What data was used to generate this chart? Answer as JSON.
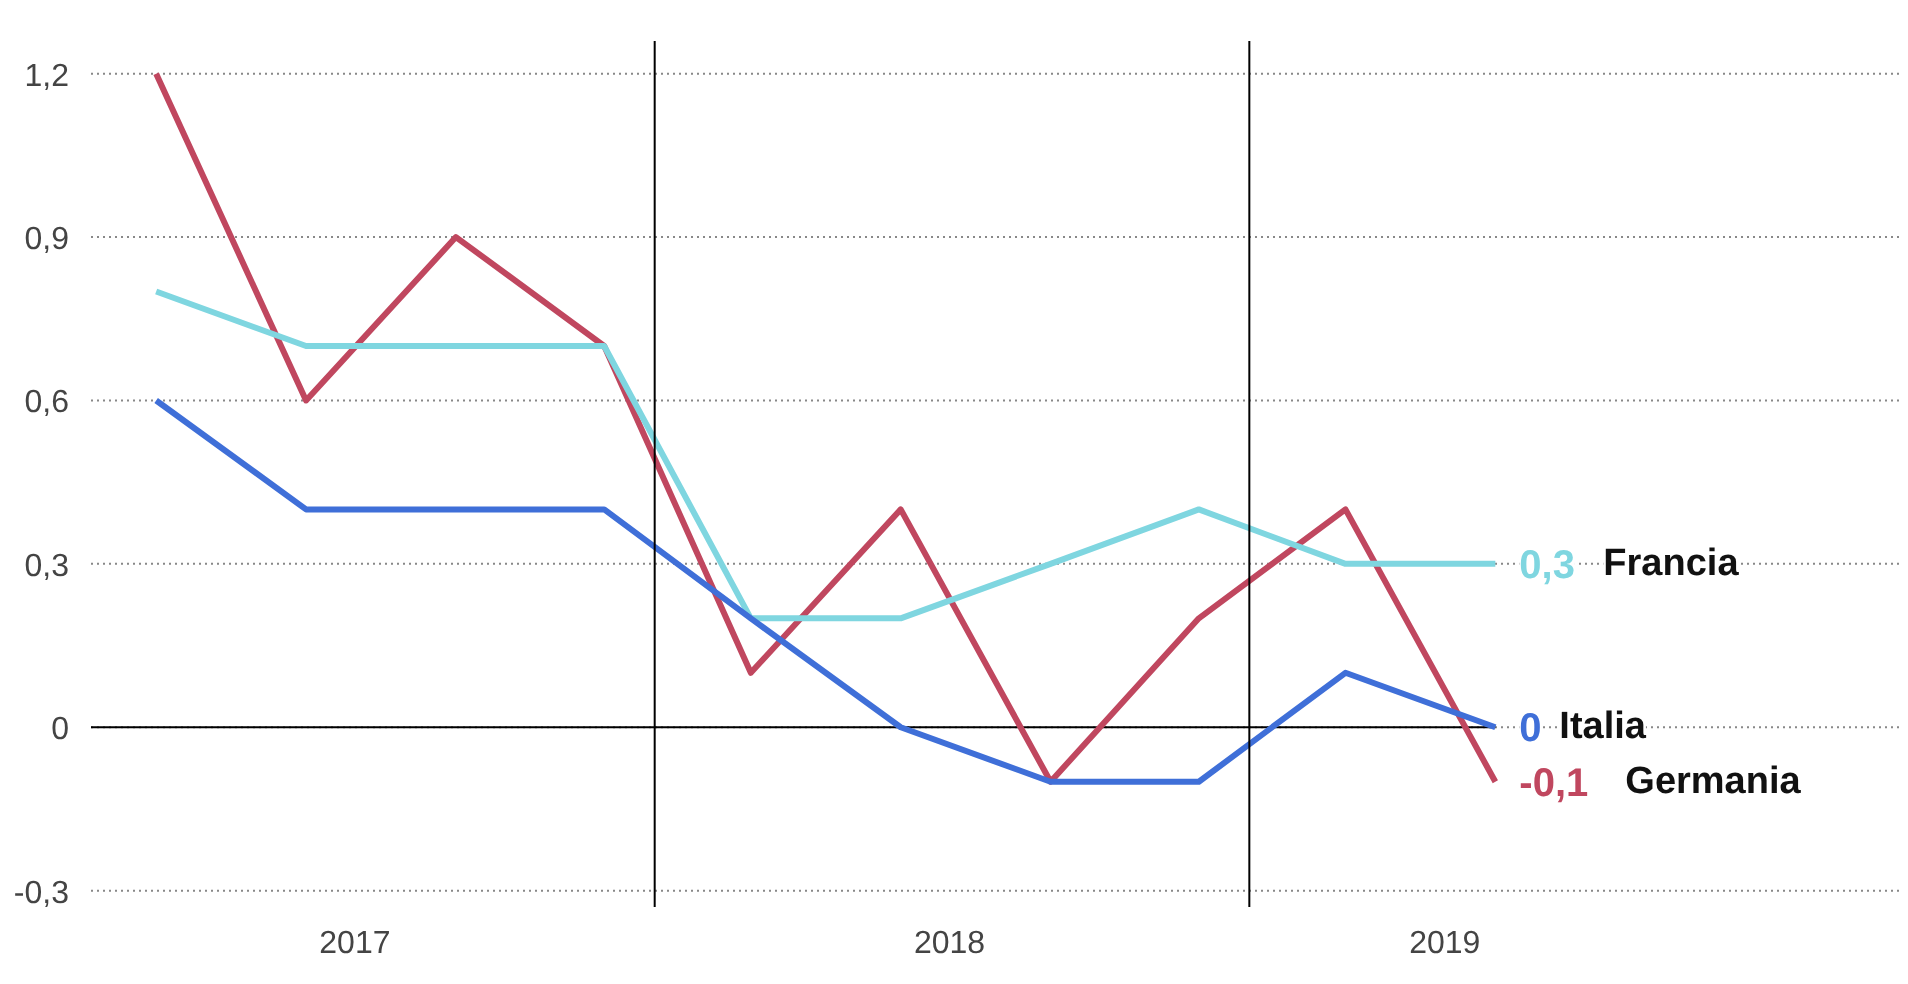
{
  "chart_data": {
    "type": "line",
    "x": [
      "2017-03",
      "2017-06",
      "2017-09",
      "2017-12",
      "2018-03",
      "2018-06",
      "2018-09",
      "2018-12",
      "2019-03",
      "2019-06"
    ],
    "xlim": [
      "2017-01-20",
      "2020-02-05"
    ],
    "xticks": [
      {
        "value": "2017-07",
        "label": "2017"
      },
      {
        "value": "2018-07",
        "label": "2018"
      },
      {
        "value": "2019-05",
        "label": "2019"
      }
    ],
    "ylim": [
      -0.33,
      1.26
    ],
    "yticks": [
      {
        "value": -0.3,
        "label": "-0,3"
      },
      {
        "value": 0,
        "label": "0"
      },
      {
        "value": 0.3,
        "label": "0,3"
      },
      {
        "value": 0.6,
        "label": "0,6"
      },
      {
        "value": 0.9,
        "label": "0,9"
      },
      {
        "value": 1.2,
        "label": "1,2"
      }
    ],
    "grid": "y",
    "line_style": "solid",
    "ref_lines": [
      {
        "axis": "y",
        "value": 0,
        "color": "#000000"
      },
      {
        "axis": "x",
        "value": "2018-01",
        "color": "#000000"
      },
      {
        "axis": "x",
        "value": "2019-01",
        "color": "#000000"
      }
    ],
    "series": [
      {
        "name": "Germania",
        "color": "#c0475f",
        "values": [
          1.2,
          0.6,
          0.9,
          0.7,
          0.1,
          0.4,
          -0.1,
          0.2,
          0.4,
          -0.1
        ],
        "value_labels": [
          null,
          null,
          null,
          null,
          null,
          null,
          null,
          null,
          null,
          "-0,1"
        ]
      },
      {
        "name": "Francia",
        "color": "#7fd6e0",
        "values": [
          0.8,
          0.7,
          0.7,
          0.7,
          0.2,
          0.2,
          0.3,
          0.4,
          0.3,
          0.3
        ],
        "value_labels": [
          null,
          null,
          null,
          null,
          null,
          null,
          null,
          null,
          null,
          "0,3"
        ]
      },
      {
        "name": "Italia",
        "color": "#3f6fd8",
        "values": [
          0.6,
          0.4,
          0.4,
          0.4,
          0.2,
          0.0,
          -0.1,
          -0.1,
          0.1,
          0.0
        ],
        "value_labels": [
          null,
          null,
          null,
          null,
          null,
          null,
          null,
          null,
          null,
          "0"
        ]
      }
    ]
  }
}
